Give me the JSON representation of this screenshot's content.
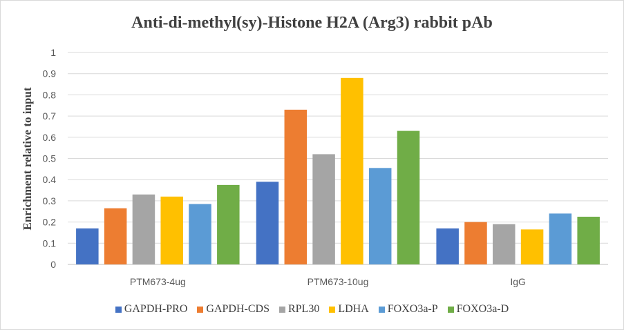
{
  "chart_data": {
    "type": "bar",
    "title": "Anti-di-methyl(sy)-Histone H2A (Arg3) rabbit pAb",
    "xlabel": "",
    "ylabel": "Enrichment relative to input",
    "ylim": [
      0,
      1
    ],
    "yticks": [
      "0",
      "0.1",
      "0.2",
      "0.3",
      "0.4",
      "0.5",
      "0.6",
      "0.7",
      "0.8",
      "0.9",
      "1"
    ],
    "grid": true,
    "legend_position": "bottom",
    "categories": [
      "PTM673-4ug",
      "PTM673-10ug",
      "IgG"
    ],
    "series": [
      {
        "name": "GAPDH-PRO",
        "color": "#4472c4",
        "values": [
          0.17,
          0.39,
          0.17
        ]
      },
      {
        "name": "GAPDH-CDS",
        "color": "#ed7d31",
        "values": [
          0.265,
          0.73,
          0.2
        ]
      },
      {
        "name": "RPL30",
        "color": "#a5a5a5",
        "values": [
          0.33,
          0.52,
          0.19
        ]
      },
      {
        "name": "LDHA",
        "color": "#ffc000",
        "values": [
          0.32,
          0.88,
          0.165
        ]
      },
      {
        "name": "FOXO3a-P",
        "color": "#5b9bd5",
        "values": [
          0.285,
          0.455,
          0.24
        ]
      },
      {
        "name": "FOXO3a-D",
        "color": "#70ad47",
        "values": [
          0.375,
          0.63,
          0.225
        ]
      }
    ]
  }
}
